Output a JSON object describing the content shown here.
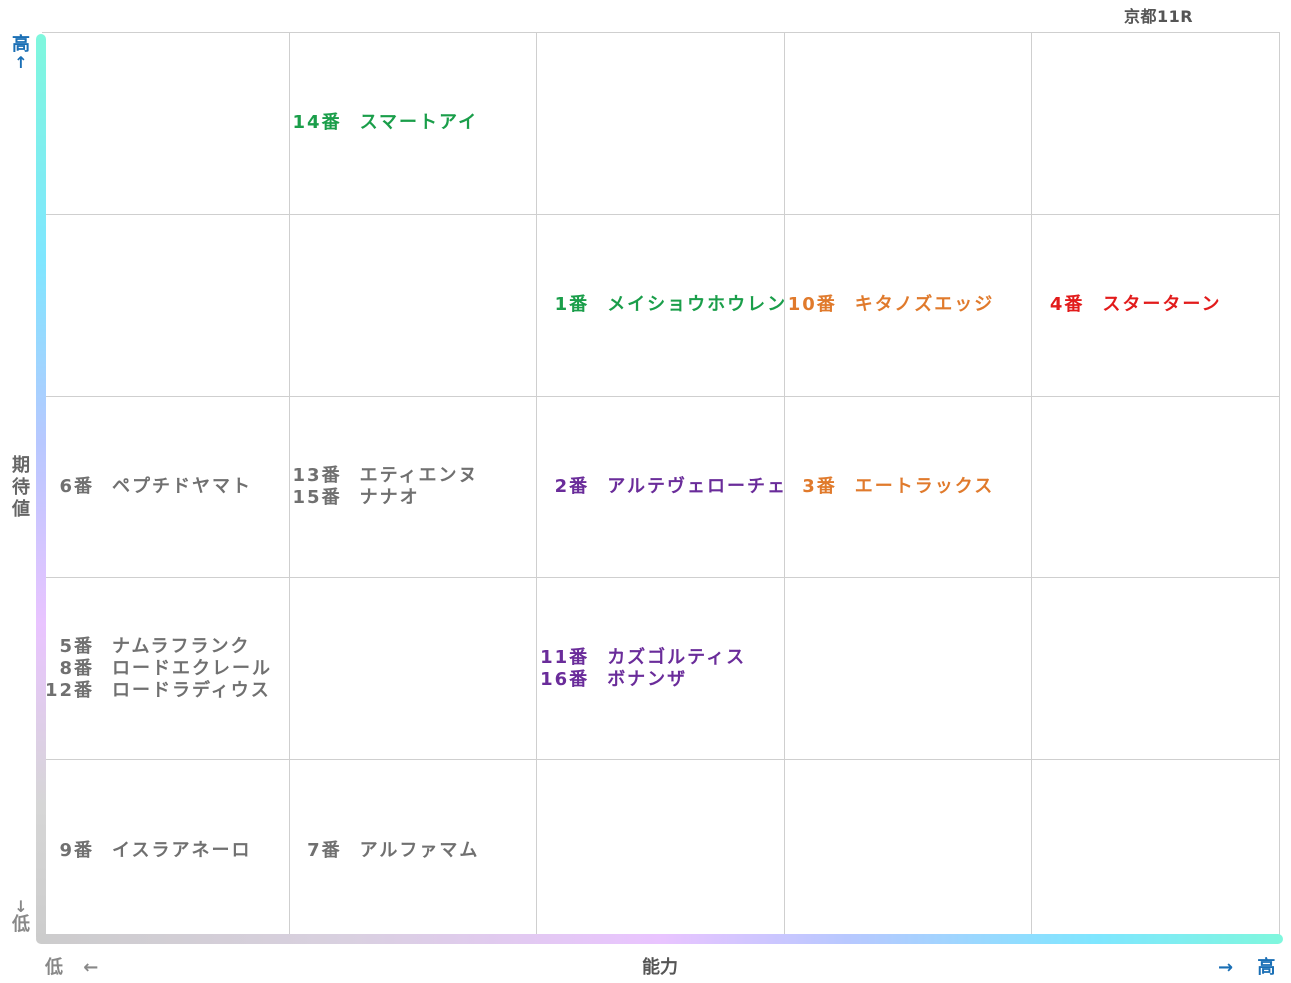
{
  "chart_data": {
    "type": "table",
    "title": "京都11R",
    "xlabel": "能力",
    "ylabel": "期待値",
    "x_low": "低",
    "x_high": "高",
    "y_low": "低",
    "y_high": "高",
    "x_low_arrow": "←",
    "x_high_arrow": "→",
    "y_low_arrow": "↓",
    "y_high_arrow": "↑",
    "columns": 5,
    "rows": 5,
    "colors": {
      "green": "#1a9e4a",
      "orange": "#e07a2c",
      "red": "#e21b1b",
      "purple": "#6a2c9a",
      "gray": "#707070",
      "axis_high": "#1a6fb5",
      "axis_low": "#888888"
    },
    "cells": [
      {
        "row": 0,
        "col": 1,
        "entries": [
          {
            "num": "14番",
            "name": "スマートアイ",
            "color": "green"
          }
        ]
      },
      {
        "row": 1,
        "col": 2,
        "entries": [
          {
            "num": "1番",
            "name": "メイショウホウレン",
            "color": "green"
          }
        ]
      },
      {
        "row": 1,
        "col": 3,
        "entries": [
          {
            "num": "10番",
            "name": "キタノズエッジ",
            "color": "orange"
          }
        ]
      },
      {
        "row": 1,
        "col": 4,
        "entries": [
          {
            "num": "4番",
            "name": "スターターン",
            "color": "red"
          }
        ]
      },
      {
        "row": 2,
        "col": 0,
        "entries": [
          {
            "num": "6番",
            "name": "ペプチドヤマト",
            "color": "gray"
          }
        ]
      },
      {
        "row": 2,
        "col": 1,
        "entries": [
          {
            "num": "13番",
            "name": "エティエンヌ",
            "color": "gray"
          },
          {
            "num": "15番",
            "name": "ナナオ",
            "color": "gray"
          }
        ]
      },
      {
        "row": 2,
        "col": 2,
        "entries": [
          {
            "num": "2番",
            "name": "アルテヴェローチェ",
            "color": "purple"
          }
        ]
      },
      {
        "row": 2,
        "col": 3,
        "entries": [
          {
            "num": "3番",
            "name": "エートラックス",
            "color": "orange"
          }
        ]
      },
      {
        "row": 3,
        "col": 0,
        "entries": [
          {
            "num": "5番",
            "name": "ナムラフランク",
            "color": "gray"
          },
          {
            "num": "8番",
            "name": "ロードエクレール",
            "color": "gray"
          },
          {
            "num": "12番",
            "name": "ロードラディウス",
            "color": "gray"
          }
        ]
      },
      {
        "row": 3,
        "col": 2,
        "entries": [
          {
            "num": "11番",
            "name": "カズゴルティス",
            "color": "purple"
          },
          {
            "num": "16番",
            "name": "ボナンザ",
            "color": "purple"
          }
        ]
      },
      {
        "row": 4,
        "col": 0,
        "entries": [
          {
            "num": "9番",
            "name": "イスラアネーロ",
            "color": "gray"
          }
        ]
      },
      {
        "row": 4,
        "col": 1,
        "entries": [
          {
            "num": "7番",
            "name": "アルファマム",
            "color": "gray"
          }
        ]
      }
    ]
  }
}
